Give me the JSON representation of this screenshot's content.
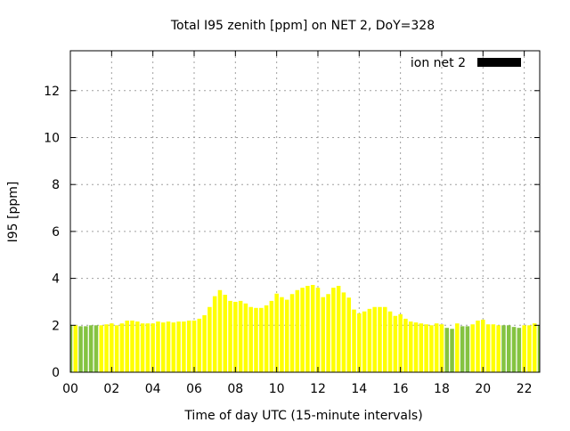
{
  "chart_data": {
    "type": "bar",
    "title": "Total I95 zenith [ppm] on NET 2, DoY=328",
    "xlabel": "Time of day UTC (15-minute intervals)",
    "ylabel": "I95 [ppm]",
    "xlim": [
      0,
      22.75
    ],
    "ylim": [
      0,
      13.7
    ],
    "grid": true,
    "legend": {
      "label": "ion net 2",
      "color": "#000000",
      "placement": "top-right"
    },
    "x_ticks": [
      "00",
      "02",
      "04",
      "06",
      "08",
      "10",
      "12",
      "14",
      "16",
      "18",
      "20",
      "22"
    ],
    "y_ticks": [
      "0",
      "2",
      "4",
      "6",
      "8",
      "10",
      "12"
    ],
    "bar_interval_hours": 0.25,
    "colors": {
      "y": "#ffff00",
      "g": "#84c341"
    },
    "values": [
      2.0,
      2.0,
      1.96,
      1.96,
      2.0,
      2.0,
      2.0,
      2.04,
      2.08,
      2.0,
      2.08,
      2.2,
      2.2,
      2.16,
      2.08,
      2.08,
      2.08,
      2.16,
      2.12,
      2.16,
      2.12,
      2.16,
      2.16,
      2.2,
      2.2,
      2.28,
      2.43,
      2.78,
      3.24,
      3.5,
      3.3,
      3.04,
      3.0,
      3.04,
      2.93,
      2.78,
      2.74,
      2.74,
      2.85,
      3.04,
      3.35,
      3.2,
      3.09,
      3.33,
      3.5,
      3.6,
      3.68,
      3.72,
      3.6,
      3.2,
      3.33,
      3.6,
      3.68,
      3.4,
      3.18,
      2.67,
      2.51,
      2.59,
      2.7,
      2.78,
      2.78,
      2.78,
      2.59,
      2.4,
      2.47,
      2.28,
      2.16,
      2.12,
      2.08,
      2.04,
      2.0,
      2.08,
      2.04,
      1.89,
      1.85,
      2.08,
      1.96,
      1.96,
      2.04,
      2.2,
      2.24,
      2.04,
      2.04,
      2.0,
      2.0,
      2.0,
      1.93,
      1.89,
      2.0,
      2.0,
      2.08,
      2.0
    ],
    "bar_colors": [
      "g",
      "y",
      "g",
      "g",
      "g",
      "g",
      "y",
      "y",
      "y",
      "y",
      "y",
      "y",
      "y",
      "y",
      "y",
      "y",
      "y",
      "y",
      "y",
      "y",
      "y",
      "y",
      "y",
      "y",
      "y",
      "y",
      "y",
      "y",
      "y",
      "y",
      "y",
      "y",
      "y",
      "y",
      "y",
      "y",
      "y",
      "y",
      "y",
      "y",
      "y",
      "y",
      "y",
      "y",
      "y",
      "y",
      "y",
      "y",
      "y",
      "y",
      "y",
      "y",
      "y",
      "y",
      "y",
      "y",
      "y",
      "y",
      "y",
      "y",
      "y",
      "y",
      "y",
      "y",
      "y",
      "y",
      "y",
      "y",
      "y",
      "y",
      "y",
      "y",
      "y",
      "g",
      "g",
      "y",
      "g",
      "g",
      "y",
      "y",
      "y",
      "y",
      "y",
      "y",
      "g",
      "g",
      "g",
      "g",
      "y",
      "y",
      "y",
      "g"
    ]
  }
}
